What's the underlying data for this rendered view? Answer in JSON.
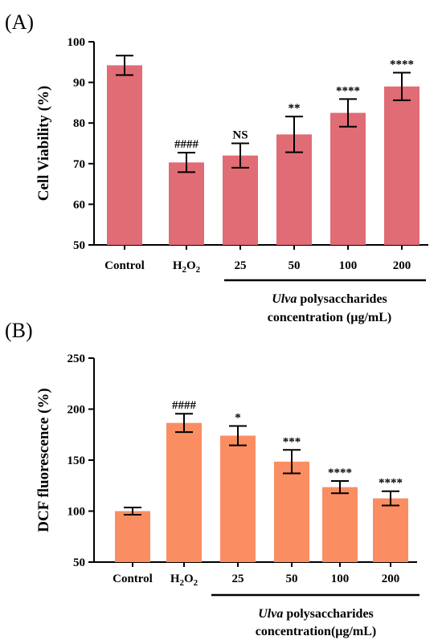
{
  "chart_data": [
    {
      "type": "bar",
      "panel_label": "(A)",
      "ylabel": "Cell Viability (%)",
      "ylim": [
        50,
        100
      ],
      "yticks": [
        50,
        60,
        70,
        80,
        90,
        100
      ],
      "categories": [
        "Control",
        "H2O2",
        "25",
        "50",
        "100",
        "200"
      ],
      "values": [
        94.2,
        70.3,
        72.0,
        77.2,
        82.5,
        89.0
      ],
      "errors": [
        2.4,
        2.4,
        3.0,
        4.4,
        3.4,
        3.4
      ],
      "significance": [
        "",
        "####",
        "NS",
        "**",
        "****",
        "****"
      ],
      "bar_color": "#E06C75",
      "group_label": {
        "italic": "Ulva",
        "rest": " polysaccharides",
        "line2": "concentration (µg/mL)"
      }
    },
    {
      "type": "bar",
      "panel_label": "(B)",
      "ylabel": "DCF fluorescence (%)",
      "ylim": [
        50,
        250
      ],
      "yticks": [
        50,
        100,
        150,
        200,
        250
      ],
      "categories": [
        "Control",
        "H2O2",
        "25",
        "50",
        "100",
        "200"
      ],
      "values": [
        100,
        186.5,
        174,
        148.5,
        123.5,
        112.5
      ],
      "errors": [
        3.5,
        9.0,
        9.5,
        11.5,
        6.0,
        7.0
      ],
      "significance": [
        "",
        "####",
        "*",
        "***",
        "****",
        "****"
      ],
      "bar_color": "#FA8E62",
      "group_label": {
        "italic": "Ulva",
        "rest": " polysaccharides",
        "line2": "concentration(µg/mL)"
      }
    }
  ]
}
